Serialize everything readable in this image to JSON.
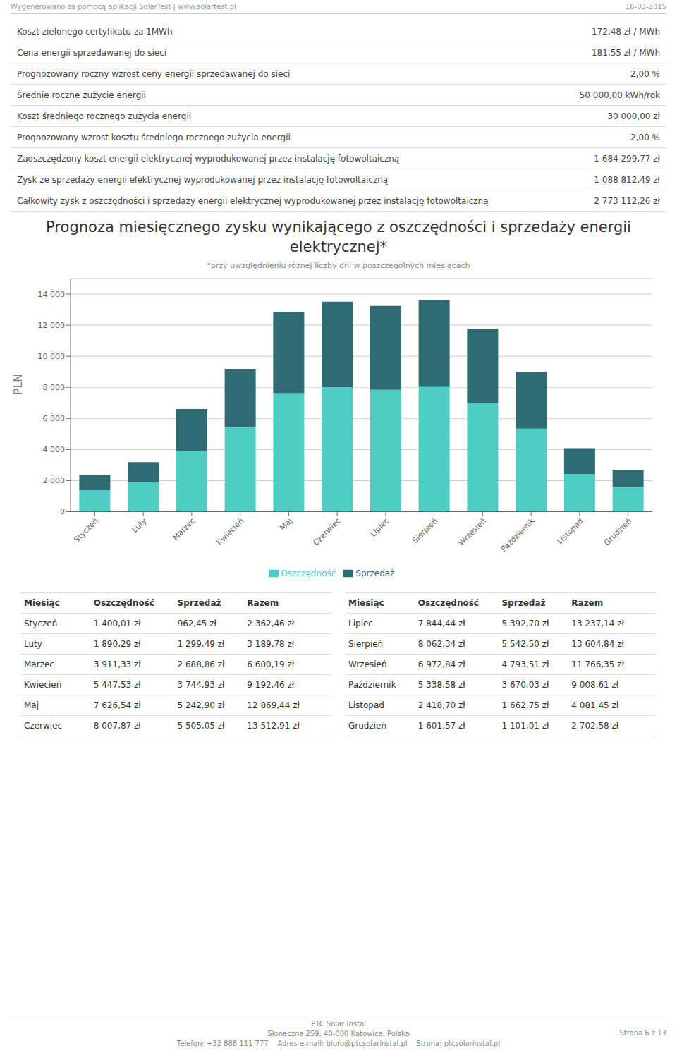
{
  "header_left": "Wygenerowano za pomocą aplikacji SolarTest | www.solartest.pl",
  "header_right": "16-03-2015",
  "info_table": [
    [
      "Koszt zielonego certyfikatu za 1MWh",
      "172,48 zł / MWh"
    ],
    [
      "Cena energii sprzedawanej do sieci",
      "181,55 zł / MWh"
    ],
    [
      "Prognozowany roczny wzrost ceny energii sprzedawanej do sieci",
      "2,00 %"
    ],
    [
      "Średnie roczne zużycie energii",
      "50 000,00 kWh/rok"
    ],
    [
      "Koszt średniego rocznego zużycia energii",
      "30 000,00 zł"
    ],
    [
      "Prognozowany wzrost kosztu średniego rocznego zużycia energii",
      "2,00 %"
    ],
    [
      "Zaoszczędzony koszt energii elektrycznej wyprodukowanej przez instalację fotowoltaiczną",
      "1 684 299,77 zł"
    ],
    [
      "Zysk ze sprzedaży energii elektrycznej wyprodukowanej przez instalację fotowoltaiczną",
      "1 088 812,49 zł"
    ],
    [
      "Całkowity zysk z oszczędności i sprzedaży energii elektrycznej wyprodukowanej przez instalację fotowoltaiczną",
      "2 773 112,26 zł"
    ]
  ],
  "chart_data": {
    "type": "bar",
    "title": "Prognoza miesięcznego zysku wynikającego z oszczędności i sprzedaży energii\nelektrycznej*",
    "subtitle": "*przy uwzględnieniu różnej liczby dni w poszczególnych miesiącach",
    "ylabel": "PLN",
    "categories": [
      "Styczeń",
      "Luty",
      "Marzec",
      "Kwiecień",
      "Maj",
      "Czerwiec",
      "Lipiec",
      "Sierpień",
      "Wrzesień",
      "Październik",
      "Listopad",
      "Grudzień"
    ],
    "series": [
      {
        "name": "Oszczędność",
        "color": "#4ECDC4",
        "values": [
          1400.01,
          1890.29,
          3911.33,
          5447.53,
          7626.54,
          8007.87,
          7844.44,
          8062.34,
          6972.84,
          5338.58,
          2418.7,
          1601.57
        ]
      },
      {
        "name": "Sprzedaż",
        "color": "#2E6B72",
        "values": [
          962.45,
          1299.49,
          2688.86,
          3744.93,
          5242.9,
          5505.05,
          5392.7,
          5542.5,
          4793.51,
          3670.03,
          1662.75,
          1101.01
        ]
      }
    ],
    "stacked": true,
    "ylim": [
      0,
      15000
    ],
    "yticks": [
      0,
      {
        "value": 2000,
        "label": "2 000"
      },
      {
        "value": 4000,
        "label": "4 000"
      },
      {
        "value": 6000,
        "label": "6 000"
      },
      {
        "value": 8000,
        "label": "8 000"
      },
      {
        "value": 10000,
        "label": "10 000"
      },
      {
        "value": 12000,
        "label": "12 000"
      },
      {
        "value": 14000,
        "label": "14 000"
      }
    ],
    "grid": true,
    "legend": "bottom"
  },
  "bottom_table": {
    "headers": [
      "Miesiąc",
      "Oszczędność",
      "Sprzedaż",
      "Razem"
    ],
    "left": [
      [
        "Styczeń",
        "1 400,01 zł",
        "962,45 zł",
        "2 362,46 zł"
      ],
      [
        "Luty",
        "1 890,29 zł",
        "1 299,49 zł",
        "3 189,78 zł"
      ],
      [
        "Marzec",
        "3 911,33 zł",
        "2 688,86 zł",
        "6 600,19 zł"
      ],
      [
        "Kwiecień",
        "5 447,53 zł",
        "3 744,93 zł",
        "9 192,46 zł"
      ],
      [
        "Maj",
        "7 626,54 zł",
        "5 242,90 zł",
        "12 869,44 zł"
      ],
      [
        "Czerwiec",
        "8 007,87 zł",
        "5 505,05 zł",
        "13 512,91 zł"
      ]
    ],
    "right": [
      [
        "Lipiec",
        "7 844,44 zł",
        "5 392,70 zł",
        "13 237,14 zł"
      ],
      [
        "Sierpień",
        "8 062,34 zł",
        "5 542,50 zł",
        "13 604,84 zł"
      ],
      [
        "Wrzesień",
        "6 972,84 zł",
        "4 793,51 zł",
        "11 766,35 zł"
      ],
      [
        "Październik",
        "5 338,58 zł",
        "3 670,03 zł",
        "9 008,61 zł"
      ],
      [
        "Listopad",
        "2 418,70 zł",
        "1 662,75 zł",
        "4 081,45 zł"
      ],
      [
        "Grudzień",
        "1 601,57 zł",
        "1 101,01 zł",
        "2 702,58 zł"
      ]
    ]
  },
  "footer_lines": [
    "PTC Solar Instal",
    "Słoneczna 259, 40-000 Katowice, Polska",
    "Telefon: +32 888 111 777    Adres e-mail: biuro@ptcsolarinstal.pl    Strona: ptcsolarinstal.pl"
  ],
  "footer_right": "Strona 6 z 13"
}
